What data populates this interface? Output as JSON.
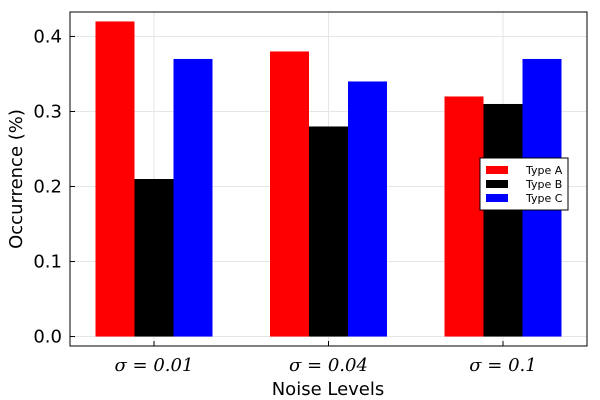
{
  "chart_data": {
    "type": "bar",
    "title": "",
    "xlabel": "Noise Levels",
    "ylabel": "Occurrence (%)",
    "categories": [
      "σ = 0.01",
      "σ = 0.04",
      "σ = 0.1"
    ],
    "series": [
      {
        "name": "Type A",
        "color": "#ff0000",
        "values": [
          0.42,
          0.38,
          0.32
        ]
      },
      {
        "name": "Type B",
        "color": "#000000",
        "values": [
          0.21,
          0.28,
          0.31
        ]
      },
      {
        "name": "Type C",
        "color": "#0000ff",
        "values": [
          0.37,
          0.34,
          0.37
        ]
      }
    ],
    "ylim": [
      -0.0126,
      0.4326
    ],
    "yticks": [
      0.0,
      0.1,
      0.2,
      0.3,
      0.4
    ],
    "ytick_labels": [
      "0.0",
      "0.1",
      "0.2",
      "0.3",
      "0.4"
    ],
    "grid": true,
    "legend_position": "right"
  }
}
